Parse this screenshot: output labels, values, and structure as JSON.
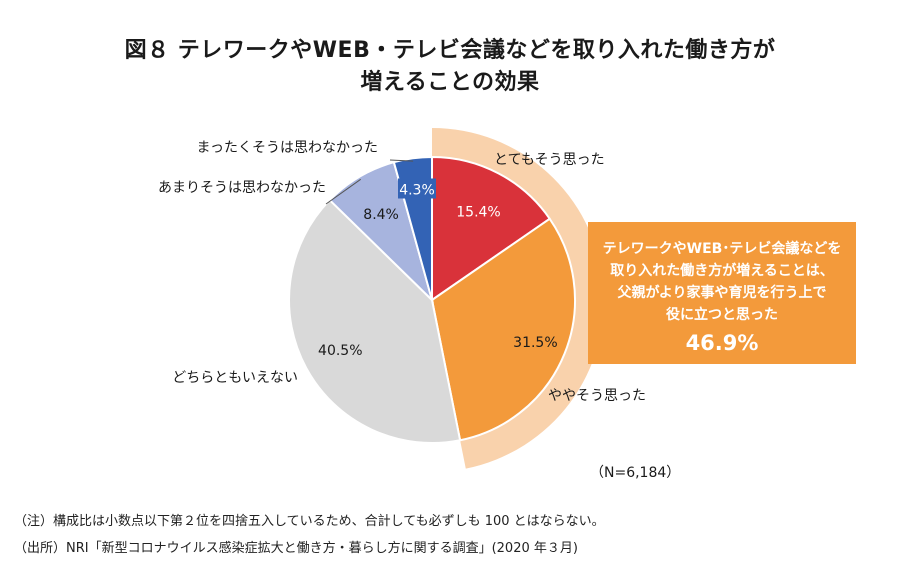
{
  "title_line1": "図８ テレワークやWEB・テレビ会議などを取り入れた働き方が",
  "title_line2": "増えることの効果",
  "chart_data": {
    "type": "pie",
    "title": "図８ テレワークやWEB・テレビ会議などを取り入れた働き方が増えることの効果",
    "slices": [
      {
        "label": "とてもそう思った",
        "value": 15.4,
        "value_label": "15.4%",
        "color": "#d9323a"
      },
      {
        "label": "ややそう思った",
        "value": 31.5,
        "value_label": "31.5%",
        "color": "#f39a3b"
      },
      {
        "label": "どちらともいえない",
        "value": 40.5,
        "value_label": "40.5%",
        "color": "#d9d9d9"
      },
      {
        "label": "あまりそうは思わなかった",
        "value": 8.4,
        "value_label": "8.4%",
        "color": "#a7b4de"
      },
      {
        "label": "まったくそうは思わなかった",
        "value": 4.3,
        "value_label": "4.3%",
        "color": "#3363b5"
      }
    ],
    "highlight_color": "#f9d2ac",
    "sample_size": "（N=6,184）"
  },
  "callout": {
    "lines": [
      "テレワークやWEB･テレビ会議などを",
      "取り入れた働き方が増えることは、",
      "父親がより家事や育児を行う上で",
      "役に立つと思った"
    ],
    "value": "46.9%"
  },
  "notes": {
    "note1": "（注）構成比は小数点以下第２位を四捨五入しているため、合計しても必ずしも 100 とはならない。",
    "note2": "（出所）NRI「新型コロナウイルス感染症拡大と働き方・暮らし方に関する調査」(2020 年３月)"
  }
}
